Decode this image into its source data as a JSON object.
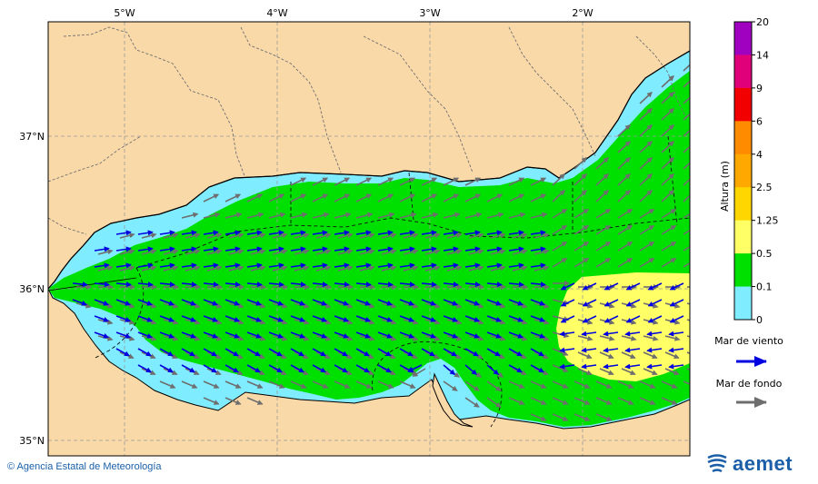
{
  "map": {
    "lon_labels": [
      "5°W",
      "4°W",
      "3°W",
      "2°W"
    ],
    "lat_labels": [
      "37°N",
      "36°N",
      "35°N"
    ]
  },
  "legend": {
    "title": "Altura (m)",
    "ticks": [
      "20",
      "14",
      "9",
      "6",
      "4",
      "2.5",
      "1.25",
      "0.5",
      "0.1",
      "0"
    ],
    "colors": [
      "#a000c0",
      "#e0007a",
      "#f20000",
      "#ff8c00",
      "#ffa800",
      "#ffd600",
      "#ffff66",
      "#00e000",
      "#80ecff",
      "#d6ffff"
    ],
    "wind_sea_label": "Mar de viento",
    "swell_label": "Mar de fondo",
    "wind_sea_color": "#0000e0",
    "swell_color": "#6e6e6e"
  },
  "footer": {
    "credit": "© Agencia Estatal de Meteorología",
    "logo_text": "aemet"
  },
  "colors": {
    "land": "#fad9a8",
    "sea_frame": "#ffffff"
  }
}
